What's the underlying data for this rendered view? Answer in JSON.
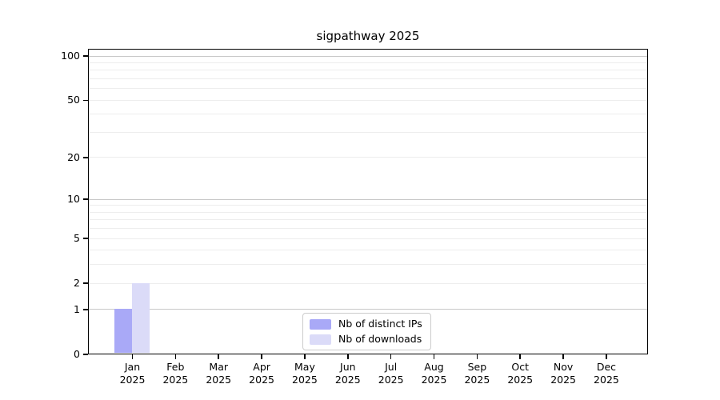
{
  "chart_data": {
    "type": "bar",
    "title": "sigpathway 2025",
    "x_labels": [
      [
        "Jan",
        "2025"
      ],
      [
        "Feb",
        "2025"
      ],
      [
        "Mar",
        "2025"
      ],
      [
        "Apr",
        "2025"
      ],
      [
        "May",
        "2025"
      ],
      [
        "Jun",
        "2025"
      ],
      [
        "Jul",
        "2025"
      ],
      [
        "Aug",
        "2025"
      ],
      [
        "Sep",
        "2025"
      ],
      [
        "Oct",
        "2025"
      ],
      [
        "Nov",
        "2025"
      ],
      [
        "Dec",
        "2025"
      ]
    ],
    "series": [
      {
        "name": "Nb of distinct IPs",
        "color": "#a9a9f7",
        "values": [
          1,
          0,
          0,
          0,
          0,
          0,
          0,
          0,
          0,
          0,
          0,
          0
        ]
      },
      {
        "name": "Nb of downloads",
        "color": "#dbdbf8",
        "values": [
          2,
          0,
          0,
          0,
          0,
          0,
          0,
          0,
          0,
          0,
          0,
          0
        ]
      }
    ],
    "y_scale": "log1p",
    "ylim": [
      0,
      112
    ],
    "y_ticks": [
      0,
      1,
      2,
      5,
      10,
      20,
      50,
      100
    ],
    "y_major_gridlines": [
      1,
      10,
      100
    ],
    "y_minor_gridlines": [
      2,
      3,
      4,
      5,
      6,
      7,
      8,
      9,
      20,
      30,
      40,
      50,
      60,
      70,
      80,
      90
    ],
    "legend": {
      "position": "bottom-center",
      "entries": [
        "Nb of distinct IPs",
        "Nb of downloads"
      ]
    },
    "grid": true,
    "colors": {
      "grid_major": "#c8c8c8",
      "grid_minor": "#ededed",
      "spine": "#000000",
      "text": "#000000",
      "background": "#ffffff"
    }
  }
}
